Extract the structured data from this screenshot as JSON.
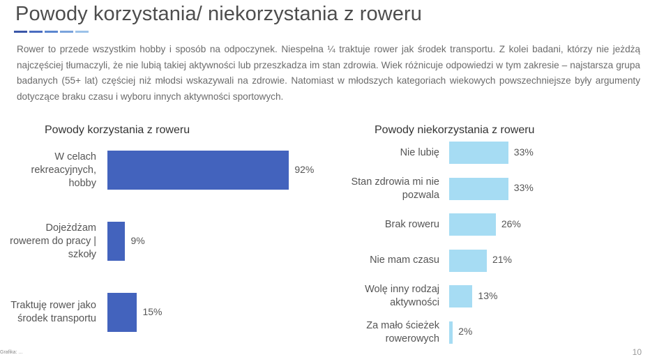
{
  "header": {
    "title": "Powody korzystania/ niekorzystania z roweru",
    "rule_colors": [
      "#3a56a8",
      "#4a6cc0",
      "#5b86cf",
      "#7aa3dc",
      "#9cc2e9"
    ]
  },
  "intro": {
    "text": "Rower to przede wszystkim hobby i sposób na odpoczynek. Niespełna ¼ traktuje rower jak środek transportu. Z kolei badani, którzy nie jeżdżą najczęściej tłumaczyli, że nie lubią takiej aktywności lub przeszkadza im stan zdrowia. Wiek różnicuje odpowiedzi w tym zakresie – najstarsza grupa badanych (55+ lat) częściej niż młodsi wskazywali na zdrowie. Natomiast w młodszych kategoriach wiekowych powszechniejsze były argumenty dotyczące braku czasu i wyboru innych aktywności sportowych."
  },
  "chart_data": [
    {
      "type": "bar",
      "orientation": "horizontal",
      "title": "Powody korzystania z roweru",
      "categories": [
        "W celach rekreacyjnych, hobby",
        "Dojeżdżam rowerem do pracy | szkoły",
        "Traktuję rower jako środek transportu"
      ],
      "values": [
        92,
        9,
        15
      ],
      "value_labels": [
        "92%",
        "9%",
        "15%"
      ],
      "unit": "%",
      "xlim": [
        0,
        100
      ],
      "color": "#4363bd"
    },
    {
      "type": "bar",
      "orientation": "horizontal",
      "title": "Powody niekorzystania z roweru",
      "categories": [
        "Nie lubię",
        "Stan zdrowia mi nie pozwala",
        "Brak roweru",
        "Nie mam czasu",
        "Wolę inny rodzaj aktywności",
        "Za mało ścieżek rowerowych"
      ],
      "values": [
        33,
        33,
        26,
        21,
        13,
        2
      ],
      "value_labels": [
        "33%",
        "33%",
        "26%",
        "21%",
        "13%",
        "2%"
      ],
      "unit": "%",
      "xlim": [
        0,
        100
      ],
      "color": "#a6dcf3"
    }
  ],
  "footer": {
    "source": "Grafika: ...",
    "page": "10"
  }
}
